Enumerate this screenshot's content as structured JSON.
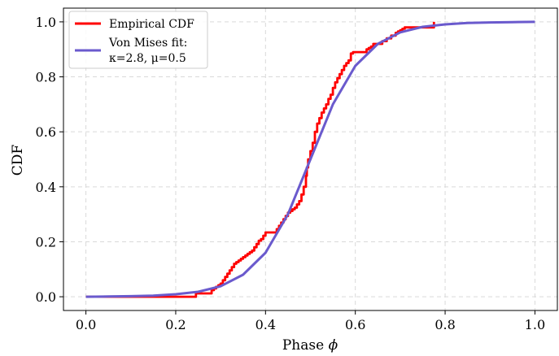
{
  "chart_data": {
    "type": "line",
    "xlabel": "Phase",
    "xlabel_symbol": "ϕ",
    "ylabel": "CDF",
    "xlim": [
      -0.05,
      1.05
    ],
    "ylim": [
      -0.05,
      1.05
    ],
    "xticks": [
      0.0,
      0.2,
      0.4,
      0.6,
      0.8,
      1.0
    ],
    "xtick_labels": [
      "0.0",
      "0.2",
      "0.4",
      "0.6",
      "0.8",
      "1.0"
    ],
    "yticks": [
      0.0,
      0.2,
      0.4,
      0.6,
      0.8,
      1.0
    ],
    "ytick_labels": [
      "0.0",
      "0.2",
      "0.4",
      "0.6",
      "0.8",
      "1.0"
    ],
    "grid": true,
    "legend_position": "top-left",
    "series": [
      {
        "name": "Empirical CDF",
        "style": "step",
        "color": "#ff0000",
        "x": [
          0.0,
          0.245,
          0.245,
          0.28,
          0.28,
          0.285,
          0.29,
          0.295,
          0.3,
          0.305,
          0.31,
          0.315,
          0.32,
          0.325,
          0.33,
          0.335,
          0.34,
          0.345,
          0.35,
          0.355,
          0.36,
          0.365,
          0.37,
          0.375,
          0.38,
          0.385,
          0.39,
          0.395,
          0.4,
          0.405,
          0.42,
          0.425,
          0.43,
          0.435,
          0.44,
          0.445,
          0.45,
          0.455,
          0.46,
          0.465,
          0.47,
          0.475,
          0.48,
          0.485,
          0.49,
          0.492,
          0.495,
          0.5,
          0.505,
          0.51,
          0.515,
          0.52,
          0.525,
          0.53,
          0.535,
          0.54,
          0.545,
          0.55,
          0.555,
          0.56,
          0.565,
          0.57,
          0.575,
          0.58,
          0.585,
          0.59,
          0.595,
          0.6,
          0.625,
          0.63,
          0.635,
          0.64,
          0.66,
          0.67,
          0.68,
          0.69,
          0.695,
          0.7,
          0.705,
          0.71,
          0.72,
          0.73,
          0.775,
          0.775
        ],
        "y": [
          0.0,
          0.0,
          0.012,
          0.012,
          0.024,
          0.03,
          0.036,
          0.042,
          0.048,
          0.06,
          0.072,
          0.084,
          0.096,
          0.108,
          0.12,
          0.126,
          0.132,
          0.138,
          0.144,
          0.15,
          0.156,
          0.162,
          0.168,
          0.18,
          0.192,
          0.204,
          0.21,
          0.222,
          0.234,
          0.234,
          0.234,
          0.246,
          0.258,
          0.27,
          0.282,
          0.294,
          0.306,
          0.312,
          0.318,
          0.324,
          0.336,
          0.348,
          0.372,
          0.4,
          0.44,
          0.47,
          0.5,
          0.53,
          0.56,
          0.6,
          0.63,
          0.65,
          0.67,
          0.685,
          0.7,
          0.72,
          0.735,
          0.76,
          0.78,
          0.795,
          0.81,
          0.825,
          0.84,
          0.85,
          0.86,
          0.885,
          0.89,
          0.89,
          0.9,
          0.905,
          0.91,
          0.92,
          0.93,
          0.94,
          0.95,
          0.96,
          0.965,
          0.97,
          0.975,
          0.98,
          0.98,
          0.98,
          0.98,
          1.0
        ]
      },
      {
        "name": "Von Mises fit:\n κ=2.8, μ=0.5",
        "style": "smooth",
        "color": "#6a5acd",
        "kappa": 2.8,
        "mu": 0.5,
        "x": [
          0.0,
          0.05,
          0.1,
          0.15,
          0.2,
          0.25,
          0.3,
          0.35,
          0.4,
          0.45,
          0.5,
          0.55,
          0.6,
          0.65,
          0.7,
          0.75,
          0.8,
          0.85,
          0.9,
          0.95,
          1.0
        ],
        "y": [
          0.0,
          0.001,
          0.002,
          0.004,
          0.009,
          0.018,
          0.038,
          0.08,
          0.16,
          0.3,
          0.5,
          0.7,
          0.84,
          0.92,
          0.962,
          0.982,
          0.991,
          0.996,
          0.998,
          0.999,
          1.0
        ]
      }
    ]
  }
}
